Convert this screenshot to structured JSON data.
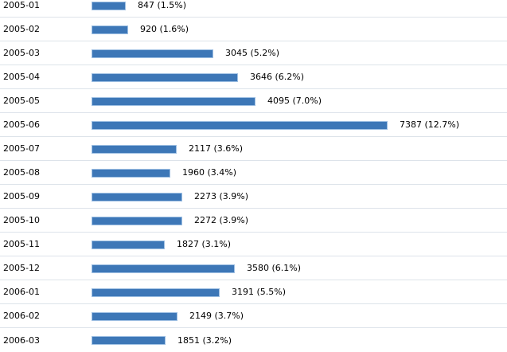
{
  "chart_data": {
    "type": "bar",
    "orientation": "horizontal",
    "categories": [
      "2005-01",
      "2005-02",
      "2005-03",
      "2005-04",
      "2005-05",
      "2005-06",
      "2005-07",
      "2005-08",
      "2005-09",
      "2005-10",
      "2005-11",
      "2005-12",
      "2006-01",
      "2006-02",
      "2006-03"
    ],
    "values": [
      847,
      920,
      3045,
      3646,
      4095,
      7387,
      2117,
      1960,
      2273,
      2272,
      1827,
      3580,
      3191,
      2149,
      1851
    ],
    "percents": [
      "1.5%",
      "1.6%",
      "5.2%",
      "6.2%",
      "7.0%",
      "12.7%",
      "3.6%",
      "3.4%",
      "3.9%",
      "3.9%",
      "3.1%",
      "6.1%",
      "5.5%",
      "3.7%",
      "3.2%"
    ],
    "value_labels": [
      "847 (1.5%)",
      "920 (1.6%)",
      "3045 (5.2%)",
      "3646 (6.2%)",
      "4095 (7.0%)",
      "7387 (12.7%)",
      "2117 (3.6%)",
      "1960 (3.4%)",
      "2273 (3.9%)",
      "2272 (3.9%)",
      "1827 (3.1%)",
      "3580 (6.1%)",
      "3191 (5.5%)",
      "2149 (3.7%)",
      "1851 (3.2%)"
    ],
    "bar_color": "#3d77b7",
    "bar_border_color": "#9fc0e3",
    "row_divider_color": "#dde3ea",
    "grid": false,
    "legend": "none"
  }
}
